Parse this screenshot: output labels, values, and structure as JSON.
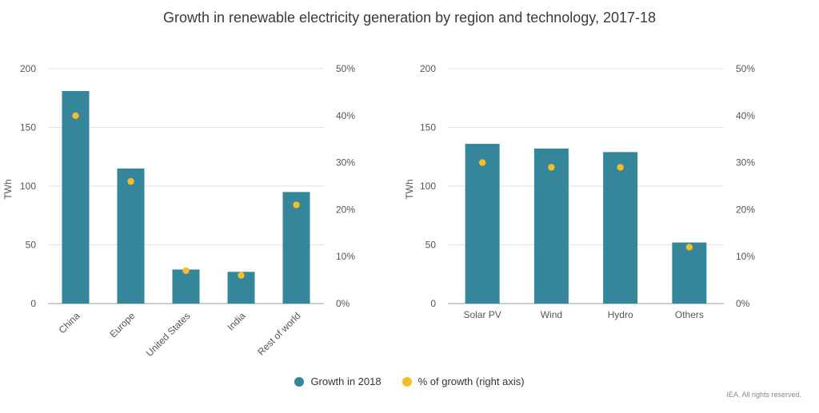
{
  "title": "Growth in renewable electricity generation by region and technology, 2017-18",
  "legend": {
    "bar_label": "Growth in 2018",
    "dot_label": "% of growth (right axis)",
    "bar_color": "#36869b",
    "dot_color": "#f6bd2a"
  },
  "footnote": "IEA. All rights reserved.",
  "chart_data": [
    {
      "type": "bar",
      "categories": [
        "China",
        "Europe",
        "United States",
        "India",
        "Rest of world"
      ],
      "series": [
        {
          "name": "Growth in 2018",
          "values": [
            181,
            115,
            29,
            27,
            95
          ],
          "axis": "left"
        },
        {
          "name": "% of growth (right axis)",
          "values": [
            40,
            26,
            7,
            6,
            21
          ],
          "axis": "right",
          "mark": "dot"
        }
      ],
      "ylabel": "TWh",
      "ylim": [
        0,
        200
      ],
      "yticks": [
        "0",
        "50",
        "100",
        "150",
        "200"
      ],
      "y2lim": [
        0,
        50
      ],
      "y2ticks": [
        "0%",
        "10%",
        "20%",
        "30%",
        "40%",
        "50%"
      ],
      "rotate_xlabels": true,
      "grid": true
    },
    {
      "type": "bar",
      "categories": [
        "Solar PV",
        "Wind",
        "Hydro",
        "Others"
      ],
      "series": [
        {
          "name": "Growth in 2018",
          "values": [
            136,
            132,
            129,
            52
          ],
          "axis": "left"
        },
        {
          "name": "% of growth (right axis)",
          "values": [
            30,
            29,
            29,
            12
          ],
          "axis": "right",
          "mark": "dot"
        }
      ],
      "ylabel": "TWh",
      "ylim": [
        0,
        200
      ],
      "yticks": [
        "0",
        "50",
        "100",
        "150",
        "200"
      ],
      "y2lim": [
        0,
        50
      ],
      "y2ticks": [
        "0%",
        "10%",
        "20%",
        "30%",
        "40%",
        "50%"
      ],
      "rotate_xlabels": false,
      "grid": true
    }
  ]
}
